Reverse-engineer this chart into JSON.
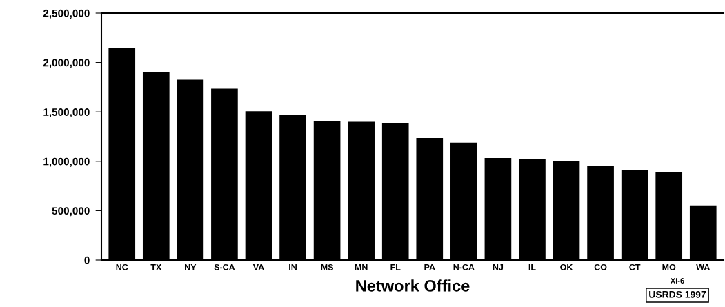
{
  "chart_data": {
    "type": "bar",
    "xlabel": "Network Office",
    "categories": [
      "NC",
      "TX",
      "NY",
      "S-CA",
      "VA",
      "IN",
      "MS",
      "MN",
      "FL",
      "PA",
      "N-CA",
      "NJ",
      "IL",
      "OK",
      "CO",
      "CT",
      "MO",
      "WA"
    ],
    "values": [
      2147000,
      1904000,
      1826000,
      1736000,
      1507000,
      1469000,
      1408000,
      1401000,
      1382000,
      1236000,
      1189000,
      1033000,
      1019000,
      998000,
      950000,
      908000,
      887000,
      554000
    ],
    "color": "#000000",
    "ylim": [
      0,
      2500000
    ],
    "yticks": [
      {
        "value": 0,
        "label": "0"
      },
      {
        "value": 500000,
        "label": "500,000"
      },
      {
        "value": 1000000,
        "label": "1,000,000"
      },
      {
        "value": 1500000,
        "label": "1,500,000"
      },
      {
        "value": 2000000,
        "label": "2,000,000"
      },
      {
        "value": 2500000,
        "label": "2,500,000"
      }
    ],
    "grid": false,
    "annotations": [
      "XI-6",
      "USRDS 1997"
    ]
  }
}
